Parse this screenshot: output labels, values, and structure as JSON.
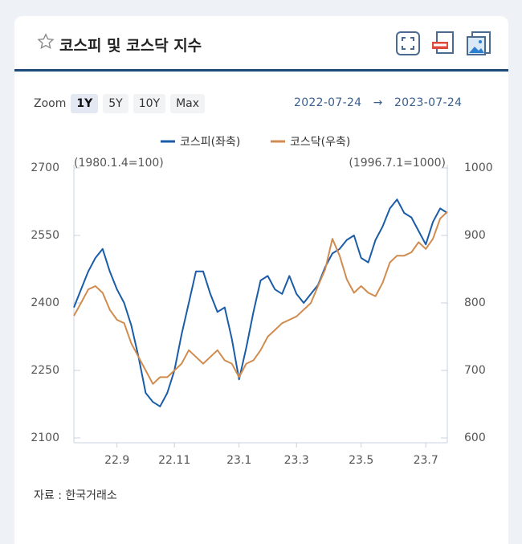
{
  "header": {
    "title": "코스피 및 코스닥 지수"
  },
  "controls": {
    "zoom_label": "Zoom",
    "buttons": [
      "1Y",
      "5Y",
      "10Y",
      "Max"
    ],
    "active_button": 0,
    "date_from": "2022-07-24",
    "arrow": "→",
    "date_to": "2023-07-24"
  },
  "chart_data": {
    "type": "line",
    "categories": [
      null,
      null,
      null,
      null,
      null,
      null,
      "22.9",
      null,
      null,
      null,
      null,
      null,
      null,
      null,
      "22.11",
      null,
      null,
      null,
      null,
      null,
      null,
      null,
      null,
      "23.1",
      null,
      null,
      null,
      null,
      null,
      null,
      null,
      "23.3",
      null,
      null,
      null,
      null,
      null,
      null,
      null,
      null,
      "23.5",
      null,
      null,
      null,
      null,
      null,
      null,
      null,
      null,
      "23.7",
      null,
      null,
      null
    ],
    "series": [
      {
        "name": "코스피(좌축)",
        "color": "#1a5ca8",
        "axis": "y",
        "values": [
          2390,
          2430,
          2470,
          2500,
          2520,
          2470,
          2430,
          2400,
          2350,
          2280,
          2200,
          2180,
          2170,
          2200,
          2250,
          2330,
          2400,
          2470,
          2470,
          2420,
          2380,
          2390,
          2320,
          2230,
          2300,
          2380,
          2450,
          2460,
          2430,
          2420,
          2460,
          2420,
          2400,
          2420,
          2440,
          2480,
          2510,
          2520,
          2540,
          2550,
          2500,
          2490,
          2540,
          2570,
          2610,
          2630,
          2600,
          2590,
          2560,
          2530,
          2580,
          2610,
          2600
        ]
      },
      {
        "name": "코스닥(우축)",
        "color": "#d08c4f",
        "axis": "y2",
        "values": [
          781,
          800,
          820,
          825,
          815,
          790,
          775,
          770,
          740,
          720,
          700,
          680,
          690,
          690,
          700,
          710,
          730,
          720,
          710,
          720,
          730,
          715,
          710,
          690,
          710,
          715,
          730,
          750,
          760,
          770,
          775,
          780,
          790,
          800,
          825,
          850,
          895,
          870,
          835,
          815,
          825,
          815,
          810,
          830,
          860,
          870,
          870,
          875,
          890,
          880,
          895,
          925,
          935
        ]
      }
    ],
    "ylim": [
      2100,
      2700
    ],
    "yticks": [
      2100,
      2250,
      2400,
      2550,
      2700
    ],
    "y2lim": [
      600,
      1000
    ],
    "y2ticks": [
      600,
      700,
      800,
      900,
      1000
    ],
    "annotations": [
      "(1980.1.4=100)",
      "(1996.7.1=1000)"
    ],
    "legend": "top"
  },
  "source": "자료 : 한국거래소"
}
